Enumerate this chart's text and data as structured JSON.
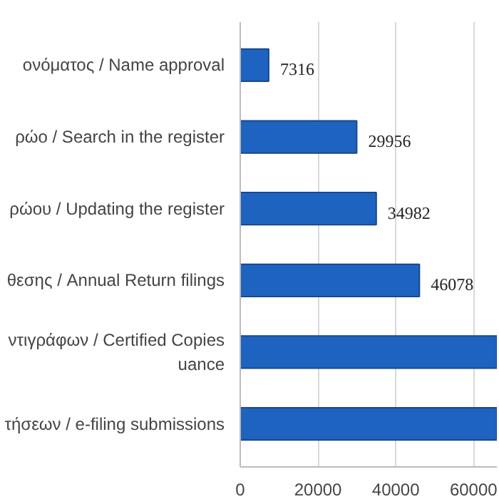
{
  "chart_data": {
    "type": "bar",
    "orientation": "horizontal",
    "categories": [
      "ονόματος / Name approval",
      "ρώο / Search in the register",
      "ρώου / Updating the register",
      "θεσης / Annual Return filings",
      "ντιγράφων / Certified Copies\nuance",
      "τήσεων / e-filing submissions"
    ],
    "values": [
      7316,
      29956,
      34982,
      46078,
      66000,
      66000
    ],
    "value_labels": [
      "7316",
      "29956",
      "34982",
      "46078",
      null,
      null
    ],
    "color": "#1f63c0",
    "xlim": [
      0,
      66000
    ],
    "xticks": [
      0,
      20000,
      40000,
      60000
    ],
    "grid": "x"
  }
}
